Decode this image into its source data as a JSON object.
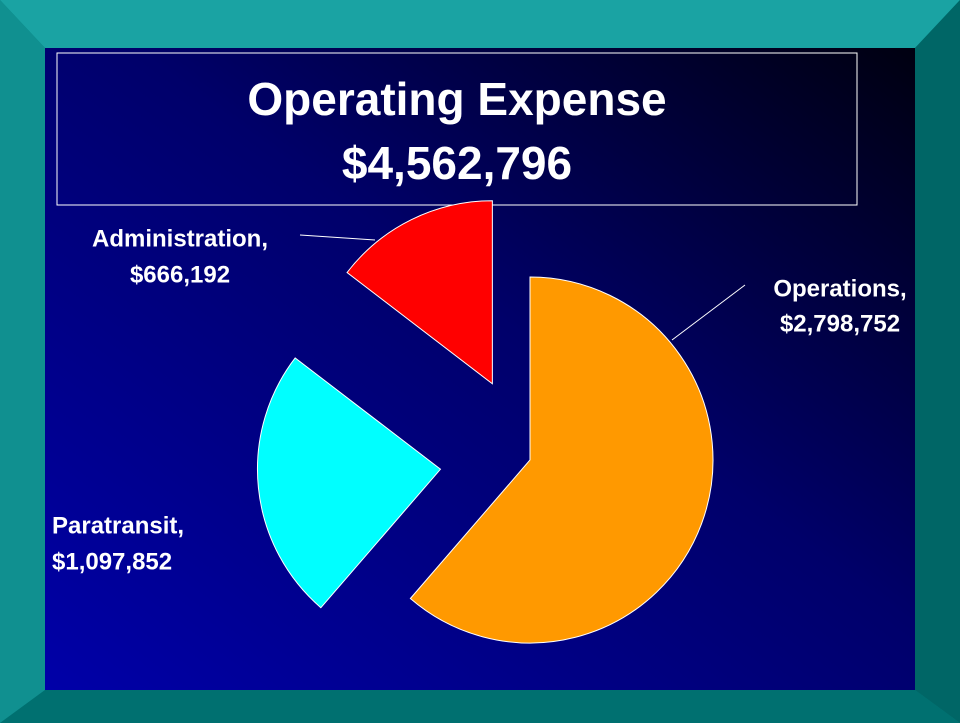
{
  "chart_data": {
    "type": "pie",
    "title": "Operating Expense",
    "subtitle": "$4,562,796",
    "categories": [
      "Operations,",
      "Paratransit,",
      "Administration,"
    ],
    "values": [
      2798752,
      1097852,
      666192
    ],
    "value_labels": [
      "$2,798,752",
      "$1,097,852",
      "$666,192"
    ],
    "colors": [
      "#ff9900",
      "#00ffff",
      "#ff0000"
    ]
  }
}
